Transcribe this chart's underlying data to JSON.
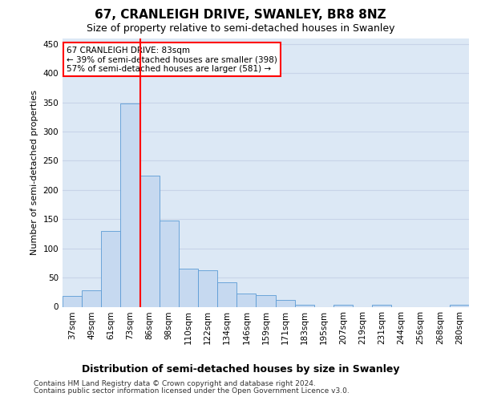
{
  "title": "67, CRANLEIGH DRIVE, SWANLEY, BR8 8NZ",
  "subtitle": "Size of property relative to semi-detached houses in Swanley",
  "xlabel": "Distribution of semi-detached houses by size in Swanley",
  "ylabel": "Number of semi-detached properties",
  "footnote1": "Contains HM Land Registry data © Crown copyright and database right 2024.",
  "footnote2": "Contains public sector information licensed under the Open Government Licence v3.0.",
  "annotation_line1": "67 CRANLEIGH DRIVE: 83sqm",
  "annotation_line2": "← 39% of semi-detached houses are smaller (398)",
  "annotation_line3": "57% of semi-detached houses are larger (581) →",
  "bar_color": "#c6d9f0",
  "bar_edge_color": "#5b9bd5",
  "property_line_color": "red",
  "categories": [
    "37sqm",
    "49sqm",
    "61sqm",
    "73sqm",
    "86sqm",
    "98sqm",
    "110sqm",
    "122sqm",
    "134sqm",
    "146sqm",
    "159sqm",
    "171sqm",
    "183sqm",
    "195sqm",
    "207sqm",
    "219sqm",
    "231sqm",
    "244sqm",
    "256sqm",
    "268sqm",
    "280sqm"
  ],
  "values": [
    18,
    28,
    130,
    348,
    225,
    148,
    65,
    62,
    42,
    22,
    20,
    11,
    4,
    0,
    3,
    0,
    3,
    0,
    0,
    0,
    3
  ],
  "ylim": [
    0,
    460
  ],
  "yticks": [
    0,
    50,
    100,
    150,
    200,
    250,
    300,
    350,
    400,
    450
  ],
  "grid_color": "#c8d4e8",
  "bg_color": "#dce8f5",
  "red_line_bar_idx": 4,
  "annotation_box_color": "white",
  "annotation_box_edge": "red",
  "title_fontsize": 11,
  "subtitle_fontsize": 9,
  "ylabel_fontsize": 8,
  "xlabel_fontsize": 9,
  "footnote_fontsize": 6.5,
  "tick_fontsize": 7.5,
  "annot_fontsize": 7.5
}
